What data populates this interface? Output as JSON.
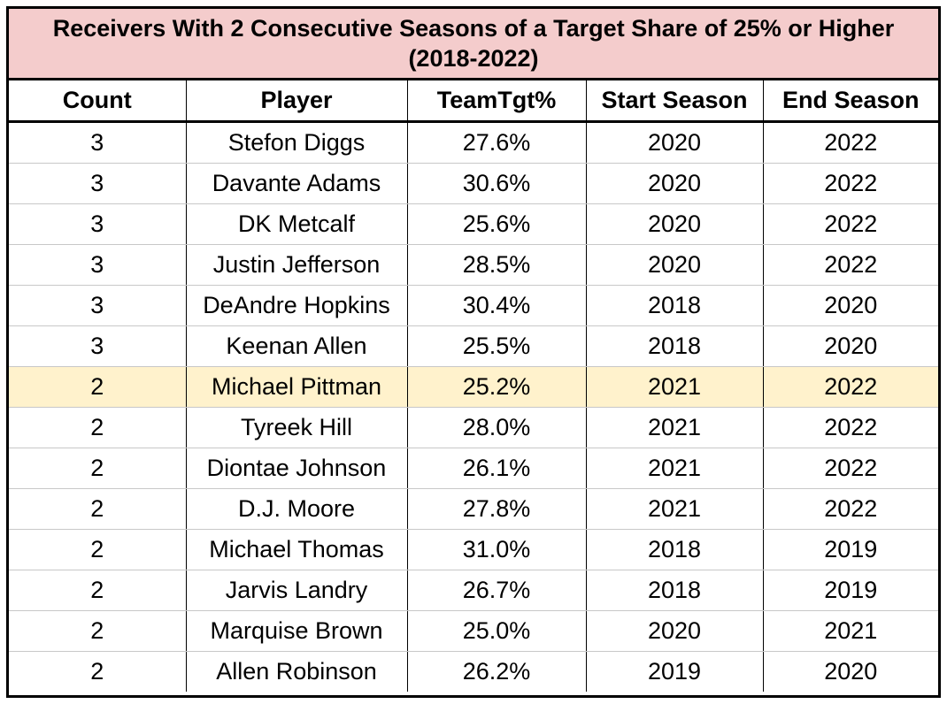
{
  "title": {
    "line1": "Receivers With 2 Consecutive Seasons of a Target Share of 25% or Higher",
    "line2": "(2018-2022)"
  },
  "columns": [
    "Count",
    "Player",
    "TeamTgt%",
    "Start Season",
    "End Season"
  ],
  "colors": {
    "title_background": "#f4cccc",
    "highlight_row": "#fff2cc"
  },
  "highlighted_row_index": 6,
  "rows": [
    [
      "3",
      "Stefon Diggs",
      "27.6%",
      "2020",
      "2022"
    ],
    [
      "3",
      "Davante Adams",
      "30.6%",
      "2020",
      "2022"
    ],
    [
      "3",
      "DK Metcalf",
      "25.6%",
      "2020",
      "2022"
    ],
    [
      "3",
      "Justin Jefferson",
      "28.5%",
      "2020",
      "2022"
    ],
    [
      "3",
      "DeAndre Hopkins",
      "30.4%",
      "2018",
      "2020"
    ],
    [
      "3",
      "Keenan Allen",
      "25.5%",
      "2018",
      "2020"
    ],
    [
      "2",
      "Michael Pittman",
      "25.2%",
      "2021",
      "2022"
    ],
    [
      "2",
      "Tyreek Hill",
      "28.0%",
      "2021",
      "2022"
    ],
    [
      "2",
      "Diontae Johnson",
      "26.1%",
      "2021",
      "2022"
    ],
    [
      "2",
      "D.J. Moore",
      "27.8%",
      "2021",
      "2022"
    ],
    [
      "2",
      "Michael Thomas",
      "31.0%",
      "2018",
      "2019"
    ],
    [
      "2",
      "Jarvis Landry",
      "26.7%",
      "2018",
      "2019"
    ],
    [
      "2",
      "Marquise Brown",
      "25.0%",
      "2020",
      "2021"
    ],
    [
      "2",
      "Allen Robinson",
      "26.2%",
      "2019",
      "2020"
    ]
  ]
}
